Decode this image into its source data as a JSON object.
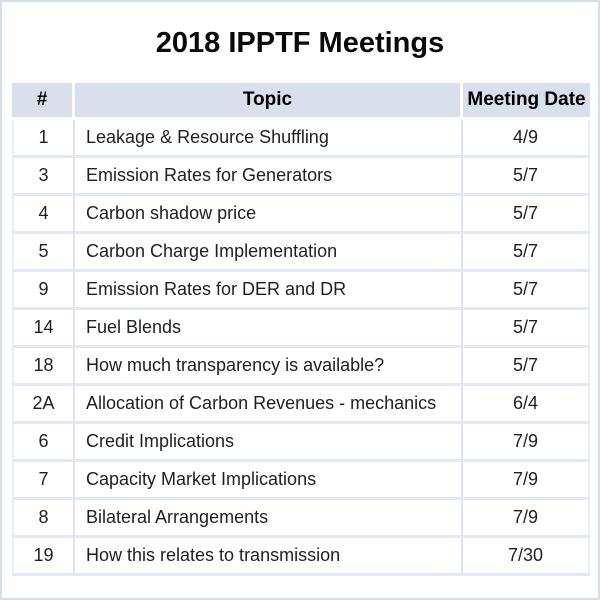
{
  "slide": {
    "title": "2018 IPPTF Meetings"
  },
  "table": {
    "columns": [
      "#",
      "Topic",
      "Meeting Date"
    ],
    "rows": [
      {
        "num": "1",
        "topic": "Leakage & Resource Shuffling",
        "date": "4/9"
      },
      {
        "num": "3",
        "topic": "Emission Rates for Generators",
        "date": "5/7"
      },
      {
        "num": "4",
        "topic": "Carbon shadow price",
        "date": "5/7"
      },
      {
        "num": "5",
        "topic": "Carbon Charge Implementation",
        "date": "5/7"
      },
      {
        "num": "9",
        "topic": "Emission Rates for DER and DR",
        "date": "5/7"
      },
      {
        "num": "14",
        "topic": "Fuel Blends",
        "date": "5/7"
      },
      {
        "num": "18",
        "topic": "How much transparency is available?",
        "date": "5/7"
      },
      {
        "num": "2A",
        "topic": "Allocation of Carbon Revenues - mechanics",
        "date": "6/4"
      },
      {
        "num": "6",
        "topic": "Credit Implications",
        "date": "7/9"
      },
      {
        "num": "7",
        "topic": "Capacity Market Implications",
        "date": "7/9"
      },
      {
        "num": "8",
        "topic": "Bilateral Arrangements",
        "date": "7/9"
      },
      {
        "num": "19",
        "topic": "How this relates to transmission",
        "date": "7/30"
      }
    ]
  },
  "colors": {
    "header_background": "#d9e0ec",
    "row_separator": "#e3e8f4",
    "column_separator": "#dde4f1",
    "page_border": "#d7dee9",
    "title_text": "#0a0a0a",
    "body_text": "#1f1f1f"
  }
}
